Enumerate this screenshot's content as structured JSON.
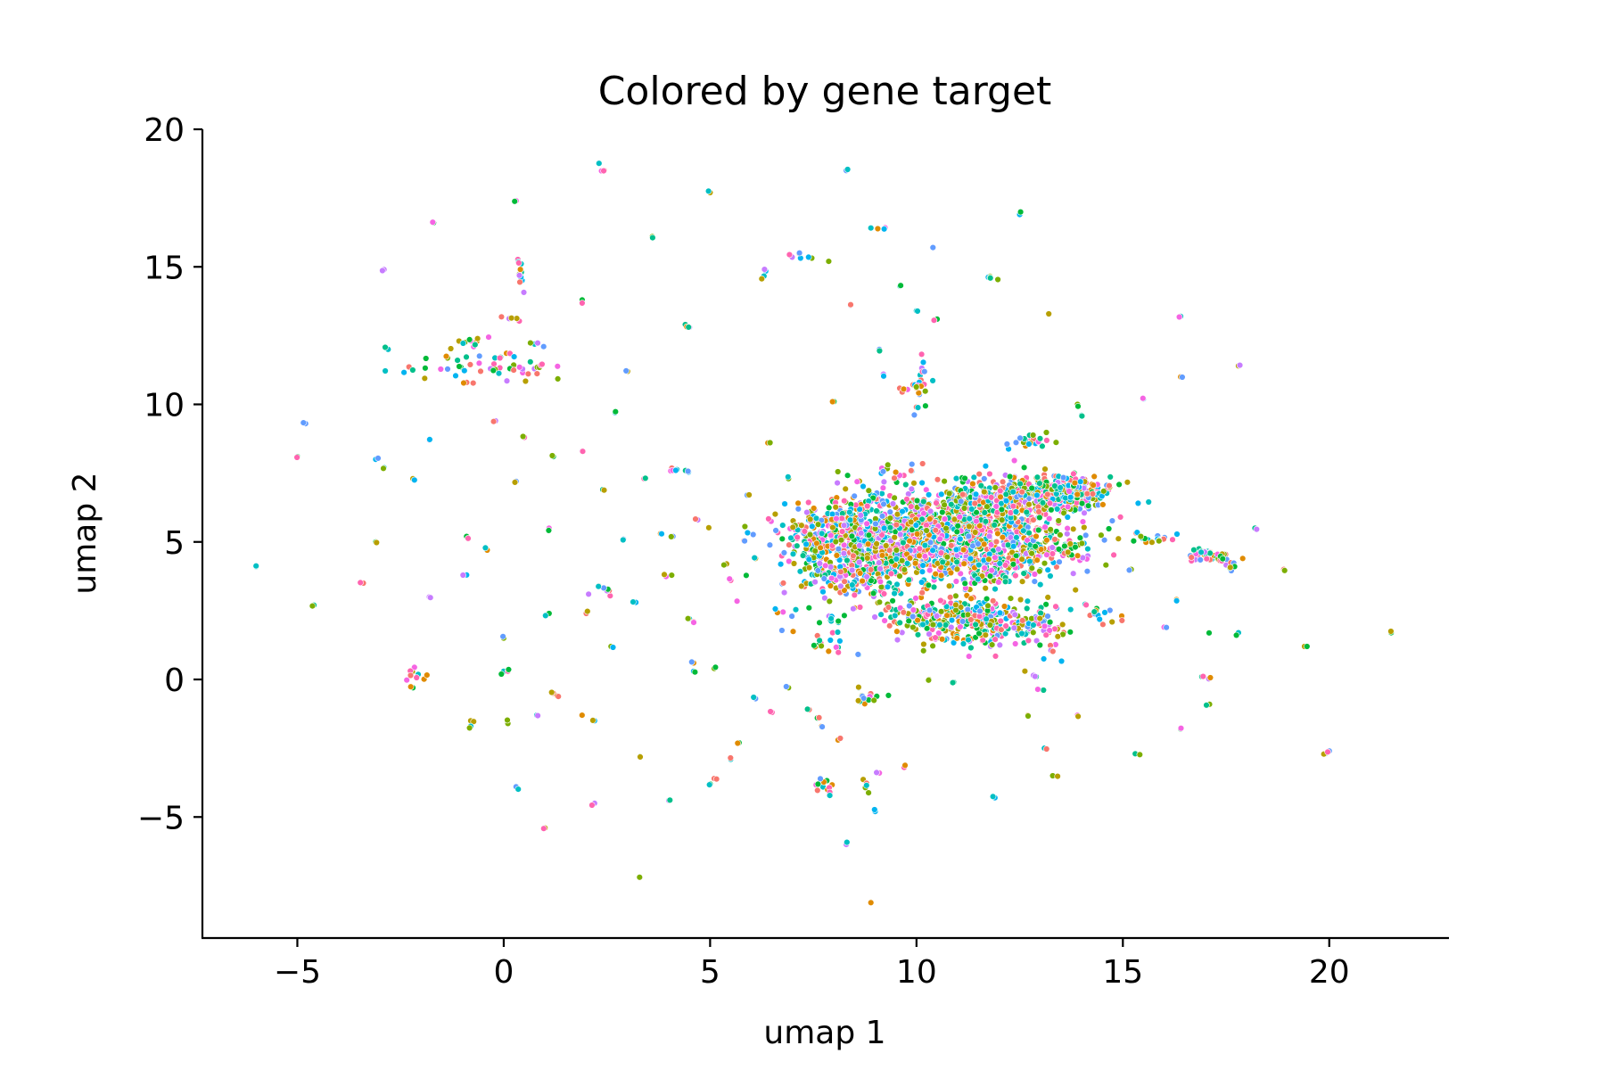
{
  "chart_data": {
    "type": "scatter",
    "title": "Colored by gene target",
    "xlabel": "umap 1",
    "ylabel": "umap 2",
    "xlim": [
      -7.3,
      22.9
    ],
    "ylim": [
      -9.4,
      20.0
    ],
    "xticks": [
      -5,
      0,
      5,
      10,
      15,
      20
    ],
    "yticks": [
      -5,
      0,
      5,
      10,
      15,
      20
    ],
    "xtick_labels": [
      "−5",
      "0",
      "5",
      "10",
      "15",
      "20"
    ],
    "ytick_labels": [
      "−5",
      "0",
      "5",
      "10",
      "15",
      "20"
    ],
    "grid": false,
    "legend": "none",
    "palette": [
      "#f8766d",
      "#e08b00",
      "#b79f00",
      "#7cae00",
      "#00ba38",
      "#00c08b",
      "#00bfc4",
      "#00b4f0",
      "#619cff",
      "#c77cff",
      "#f564e3",
      "#ff64b0"
    ],
    "clusters": [
      {
        "x": 10.5,
        "y": 5.2,
        "sx": 1.55,
        "sy": 0.85,
        "n": 1500
      },
      {
        "x": 12.6,
        "y": 6.6,
        "sx": 0.9,
        "sy": 0.35,
        "n": 380
      },
      {
        "x": 13.7,
        "y": 6.9,
        "sx": 0.5,
        "sy": 0.25,
        "n": 160
      },
      {
        "x": 11.3,
        "y": 2.1,
        "sx": 0.75,
        "sy": 0.45,
        "n": 240
      },
      {
        "x": 9.8,
        "y": 2.3,
        "sx": 0.4,
        "sy": 0.3,
        "n": 70
      },
      {
        "x": 12.8,
        "y": 1.9,
        "sx": 0.4,
        "sy": 0.3,
        "n": 60
      },
      {
        "x": 8.4,
        "y": 5.0,
        "sx": 0.45,
        "sy": 0.8,
        "n": 220
      },
      {
        "x": 8.3,
        "y": 3.6,
        "sx": 0.6,
        "sy": 0.3,
        "n": 80
      },
      {
        "x": 7.4,
        "y": 5.2,
        "sx": 0.3,
        "sy": 0.5,
        "n": 50
      },
      {
        "x": 11.9,
        "y": 3.9,
        "sx": 0.4,
        "sy": 0.25,
        "n": 50
      },
      {
        "x": 13.2,
        "y": 4.8,
        "sx": 0.5,
        "sy": 0.3,
        "n": 60
      },
      {
        "x": 12.7,
        "y": 8.7,
        "sx": 0.3,
        "sy": 0.2,
        "n": 22
      },
      {
        "x": 17.1,
        "y": 4.5,
        "sx": 0.3,
        "sy": 0.15,
        "n": 45
      },
      {
        "x": 17.6,
        "y": 4.1,
        "sx": 0.15,
        "sy": 0.1,
        "n": 8
      },
      {
        "x": 15.7,
        "y": 5.1,
        "sx": 0.3,
        "sy": 0.1,
        "n": 18
      },
      {
        "x": 14.5,
        "y": 2.3,
        "sx": 0.3,
        "sy": 0.2,
        "n": 16
      },
      {
        "x": 7.8,
        "y": 1.5,
        "sx": 0.2,
        "sy": 0.4,
        "n": 18
      },
      {
        "x": 8.0,
        "y": 2.2,
        "sx": 0.15,
        "sy": 0.1,
        "n": 8
      },
      {
        "x": 8.8,
        "y": -0.7,
        "sx": 0.15,
        "sy": 0.1,
        "n": 12
      },
      {
        "x": 7.8,
        "y": -3.9,
        "sx": 0.1,
        "sy": 0.15,
        "n": 10
      },
      {
        "x": 8.8,
        "y": -3.8,
        "sx": 0.08,
        "sy": 0.2,
        "n": 6
      },
      {
        "x": 10.1,
        "y": 11.0,
        "sx": 0.08,
        "sy": 0.5,
        "n": 14
      },
      {
        "x": 9.7,
        "y": 10.5,
        "sx": 0.15,
        "sy": 0.05,
        "n": 6
      },
      {
        "x": 10.1,
        "y": 10.7,
        "sx": 0.1,
        "sy": 0.1,
        "n": 6
      },
      {
        "x": -0.5,
        "y": 11.3,
        "sx": 0.9,
        "sy": 0.25,
        "n": 55
      },
      {
        "x": -0.7,
        "y": 12.3,
        "sx": 0.25,
        "sy": 0.12,
        "n": 10
      },
      {
        "x": 0.4,
        "y": 14.8,
        "sx": 0.06,
        "sy": 0.35,
        "n": 12
      },
      {
        "x": 0.2,
        "y": 13.1,
        "sx": 0.1,
        "sy": 0.05,
        "n": 5
      },
      {
        "x": 0.8,
        "y": 12.2,
        "sx": 0.08,
        "sy": 0.05,
        "n": 4
      },
      {
        "x": -2.2,
        "y": 0.1,
        "sx": 0.15,
        "sy": 0.15,
        "n": 10
      },
      {
        "x": 4.1,
        "y": 7.6,
        "sx": 0.2,
        "sy": 0.06,
        "n": 8
      },
      {
        "x": 7.2,
        "y": 15.3,
        "sx": 0.3,
        "sy": 0.1,
        "n": 8
      },
      {
        "x": 11.8,
        "y": 14.6,
        "sx": 0.15,
        "sy": 0.06,
        "n": 5
      },
      {
        "x": 2.4,
        "y": 18.6,
        "sx": 0.05,
        "sy": 0.12,
        "n": 4
      },
      {
        "x": 6.3,
        "y": 14.8,
        "sx": 0.05,
        "sy": 0.1,
        "n": 4
      },
      {
        "x": 9.2,
        "y": 16.4,
        "sx": 0.1,
        "sy": 0.06,
        "n": 4
      },
      {
        "x": 17.0,
        "y": 0.05,
        "sx": 0.12,
        "sy": 0.05,
        "n": 4
      },
      {
        "x": 2.5,
        "y": 3.3,
        "sx": 0.2,
        "sy": 0.1,
        "n": 6
      },
      {
        "x": 4.0,
        "y": 3.8,
        "sx": 0.05,
        "sy": 0.05,
        "n": 3
      },
      {
        "x": 6.3,
        "y": 5.3,
        "sx": 0.3,
        "sy": 0.3,
        "n": 8
      },
      {
        "x": 6.7,
        "y": 2.8,
        "sx": 0.4,
        "sy": 0.6,
        "n": 14
      },
      {
        "x": 9.4,
        "y": 7.6,
        "sx": 0.3,
        "sy": 0.2,
        "n": 10
      },
      {
        "x": 13.2,
        "y": 0.5,
        "sx": 0.3,
        "sy": 0.6,
        "n": 10
      }
    ],
    "points": [
      [
        -6.0,
        4.1
      ],
      [
        -5.0,
        8.1
      ],
      [
        -4.8,
        9.3
      ],
      [
        -4.6,
        2.7
      ],
      [
        -3.4,
        3.5
      ],
      [
        -3.1,
        8.0
      ],
      [
        -3.1,
        5.0
      ],
      [
        -2.9,
        14.9
      ],
      [
        -2.8,
        12.0
      ],
      [
        -2.9,
        7.7
      ],
      [
        -2.2,
        7.3
      ],
      [
        -1.8,
        8.7
      ],
      [
        -1.7,
        16.6
      ],
      [
        -1.8,
        3.0
      ],
      [
        -0.9,
        5.2
      ],
      [
        -0.9,
        3.8
      ],
      [
        -0.8,
        -1.5
      ],
      [
        -0.8,
        -1.7
      ],
      [
        -0.4,
        4.7
      ],
      [
        -0.2,
        9.4
      ],
      [
        0.0,
        1.5
      ],
      [
        0.0,
        0.3
      ],
      [
        0.1,
        0.3
      ],
      [
        0.1,
        -1.6
      ],
      [
        0.3,
        17.4
      ],
      [
        0.3,
        7.2
      ],
      [
        0.3,
        -3.9
      ],
      [
        0.5,
        8.8
      ],
      [
        0.8,
        -1.3
      ],
      [
        1.0,
        -5.4
      ],
      [
        1.1,
        2.4
      ],
      [
        1.1,
        5.5
      ],
      [
        1.2,
        8.1
      ],
      [
        1.2,
        -0.5
      ],
      [
        1.3,
        -0.6
      ],
      [
        1.9,
        13.8
      ],
      [
        1.9,
        8.3
      ],
      [
        1.9,
        -1.3
      ],
      [
        2.0,
        2.4
      ],
      [
        2.2,
        -1.5
      ],
      [
        2.2,
        -4.5
      ],
      [
        2.3,
        3.4
      ],
      [
        2.4,
        6.9
      ],
      [
        2.6,
        1.2
      ],
      [
        2.7,
        9.7
      ],
      [
        2.9,
        5.1
      ],
      [
        3.0,
        11.2
      ],
      [
        3.2,
        2.8
      ],
      [
        3.3,
        -2.8
      ],
      [
        3.3,
        -7.2
      ],
      [
        3.4,
        7.3
      ],
      [
        3.6,
        16.1
      ],
      [
        3.8,
        5.3
      ],
      [
        4.0,
        -4.4
      ],
      [
        4.1,
        5.2
      ],
      [
        4.4,
        12.9
      ],
      [
        4.5,
        12.8
      ],
      [
        4.5,
        2.2
      ],
      [
        4.6,
        0.6
      ],
      [
        4.6,
        0.3
      ],
      [
        4.6,
        2.1
      ],
      [
        4.7,
        5.8
      ],
      [
        5.0,
        17.7
      ],
      [
        5.1,
        -3.6
      ],
      [
        5.0,
        -3.8
      ],
      [
        5.1,
        0.4
      ],
      [
        5.5,
        3.6
      ],
      [
        5.5,
        -2.9
      ],
      [
        5.7,
        -2.3
      ],
      [
        5.9,
        6.7
      ],
      [
        6.1,
        -0.7
      ],
      [
        6.4,
        8.6
      ],
      [
        6.5,
        -1.2
      ],
      [
        6.9,
        -0.3
      ],
      [
        6.9,
        7.3
      ],
      [
        7.4,
        -1.1
      ],
      [
        7.6,
        -1.4
      ],
      [
        7.7,
        -1.7
      ],
      [
        8.0,
        10.1
      ],
      [
        8.1,
        -2.2
      ],
      [
        8.3,
        18.5
      ],
      [
        8.3,
        -6.0
      ],
      [
        8.4,
        13.6
      ],
      [
        8.6,
        -0.3
      ],
      [
        8.9,
        -8.1
      ],
      [
        9.0,
        -4.8
      ],
      [
        9.1,
        4.5
      ],
      [
        9.1,
        12.0
      ],
      [
        9.2,
        11.1
      ],
      [
        9.6,
        14.3
      ],
      [
        9.7,
        -3.2
      ],
      [
        10.0,
        13.4
      ],
      [
        10.3,
        0.0
      ],
      [
        10.4,
        15.7
      ],
      [
        10.5,
        13.1
      ],
      [
        10.9,
        -0.1
      ],
      [
        11.9,
        -4.3
      ],
      [
        12.5,
        16.9
      ],
      [
        12.7,
        -1.3
      ],
      [
        12.9,
        0.1
      ],
      [
        13.1,
        -2.5
      ],
      [
        13.2,
        13.3
      ],
      [
        13.3,
        -3.5
      ],
      [
        13.4,
        2.6
      ],
      [
        13.9,
        10.0
      ],
      [
        13.9,
        -1.3
      ],
      [
        14.0,
        9.6
      ],
      [
        15.2,
        4.0
      ],
      [
        15.3,
        -2.7
      ],
      [
        15.5,
        10.2
      ],
      [
        16.0,
        1.9
      ],
      [
        16.3,
        2.9
      ],
      [
        16.4,
        13.2
      ],
      [
        16.4,
        11.0
      ],
      [
        16.4,
        -1.8
      ],
      [
        17.1,
        1.7
      ],
      [
        17.1,
        -0.9
      ],
      [
        17.8,
        11.4
      ],
      [
        17.8,
        1.7
      ],
      [
        18.2,
        5.5
      ],
      [
        18.9,
        4.0
      ],
      [
        19.4,
        1.2
      ],
      [
        19.9,
        -2.7
      ],
      [
        20.0,
        -2.6
      ],
      [
        21.5,
        1.7
      ],
      [
        -2.2,
        -0.3
      ],
      [
        10.0,
        10.6
      ],
      [
        10.0,
        9.9
      ],
      [
        8.6,
        0.9
      ],
      [
        8.5,
        2.6
      ],
      [
        7.9,
        -4.1
      ],
      [
        9.1,
        -3.4
      ],
      [
        6.1,
        4.4
      ],
      [
        6.8,
        6.4
      ],
      [
        5.4,
        4.2
      ]
    ]
  }
}
